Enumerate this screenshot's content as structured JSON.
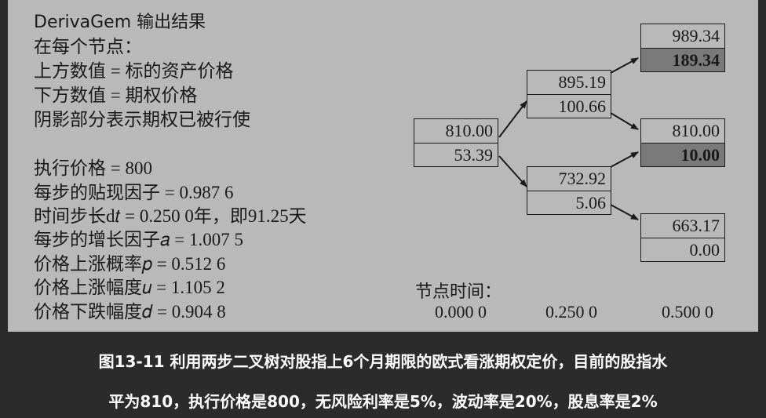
{
  "info": {
    "title": "DerivaGem 输出结果",
    "lines": [
      "在每个节点：",
      "上方数值 = 标的资产价格",
      "下方数值 = 期权价格",
      "阴影部分表示期权已被行使"
    ]
  },
  "params": [
    "执行价格 = 800",
    "每步的贴现因子 = 0.987 6",
    "时间步长d𝑡 = 0.250 0年，即91.25天",
    "每步的增长因子𝑎 = 1.007 5",
    "价格上涨概率𝑝 = 0.512 6",
    "价格上涨幅度𝑢 = 1.105 2",
    "价格下跌幅度𝑑 = 0.904 8"
  ],
  "tree": {
    "nodes": [
      {
        "id": "n0",
        "asset": "810.00",
        "option": "53.39",
        "exercised": false
      },
      {
        "id": "n1u",
        "asset": "895.19",
        "option": "100.66",
        "exercised": false
      },
      {
        "id": "n1d",
        "asset": "732.92",
        "option": "5.06",
        "exercised": false
      },
      {
        "id": "n2uu",
        "asset": "989.34",
        "option": "189.34",
        "exercised": true
      },
      {
        "id": "n2ud",
        "asset": "810.00",
        "option": "10.00",
        "exercised": true
      },
      {
        "id": "n2dd",
        "asset": "663.17",
        "option": "0.00",
        "exercised": false
      }
    ],
    "time_label": "节点时间：",
    "times": [
      "0.000 0",
      "0.250 0",
      "0.500 0"
    ]
  },
  "caption": {
    "line1": "图13-11 利用两步二叉树对股指上6个月期限的欧式看涨期权定价，目前的股指水",
    "line2": "平为810，执行价格是800，无风险利率是5%，波动率是20%，股息率是2%"
  },
  "colors": {
    "panel": "#b9b9b9",
    "shaded": "#7a7a7a",
    "background": "#2b2b2b",
    "caption": "#ffffff"
  }
}
